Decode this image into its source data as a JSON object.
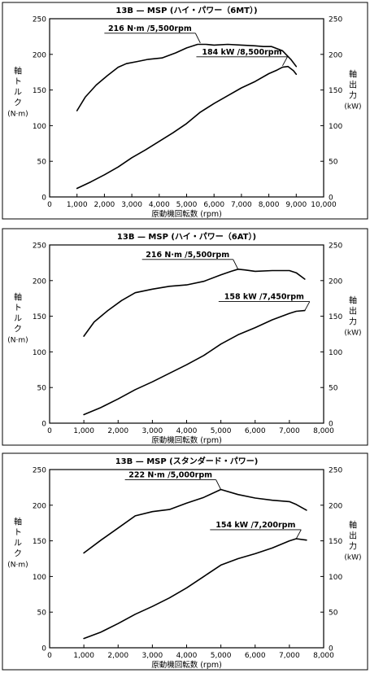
{
  "chart_data": [
    {
      "type": "line",
      "title": "13B — MSP (ハイ・パワー（6MT）)",
      "xlabel": "原動機回転数 (rpm)",
      "ylabel_left": [
        "軸",
        "ト",
        "ル",
        "ク",
        "(N·m)"
      ],
      "ylabel_right": [
        "軸",
        "出",
        "力",
        "(kW)"
      ],
      "xlim": [
        0,
        10000
      ],
      "ylim_left": [
        0,
        250
      ],
      "ylim_right": [
        0,
        250
      ],
      "x_ticks": [
        0,
        1000,
        2000,
        3000,
        4000,
        5000,
        6000,
        7000,
        8000,
        9000,
        10000
      ],
      "x_tick_labels": [
        "0",
        "1,000",
        "2,000",
        "3,000",
        "4,000",
        "5,000",
        "6,000",
        "7,000",
        "8,000",
        "9,000",
        "10,000"
      ],
      "y_ticks": [
        0,
        50,
        100,
        150,
        200,
        250
      ],
      "y_tick_labels": [
        "0",
        "50",
        "100",
        "150",
        "200",
        "250"
      ],
      "grid": false,
      "series": [
        {
          "axis": "left",
          "x": [
            1000,
            1300,
            1700,
            2100,
            2500,
            2800,
            3200,
            3600,
            4100,
            4600,
            5000,
            5400,
            5700,
            6000,
            6500,
            7000,
            7500,
            7800,
            8100,
            8500,
            8800,
            9000
          ],
          "values": [
            121,
            140,
            157,
            170,
            182,
            187,
            190,
            193,
            195,
            202,
            209,
            214,
            214,
            213,
            214,
            213,
            212,
            211,
            211,
            205,
            193,
            183
          ]
        },
        {
          "axis": "right",
          "x": [
            1000,
            1500,
            2000,
            2500,
            3000,
            3500,
            4000,
            4500,
            5000,
            5500,
            6000,
            6500,
            7000,
            7500,
            8000,
            8300,
            8500,
            8700,
            8900,
            9000
          ],
          "values": [
            12,
            21,
            31,
            42,
            55,
            66,
            78,
            90,
            103,
            119,
            131,
            142,
            153,
            162,
            173,
            178,
            182,
            183,
            177,
            172
          ]
        }
      ],
      "annotations": [
        {
          "text": "216 N·m /5,500rpm",
          "x": 5500,
          "y": 216,
          "axis": "left"
        },
        {
          "text": "184 kW /8,500rpm",
          "x": 8500,
          "y": 184,
          "axis": "right"
        }
      ]
    },
    {
      "type": "line",
      "title": "13B — MSP (ハイ・パワー（6AT）)",
      "xlabel": "原動機回転数 (rpm)",
      "ylabel_left": [
        "軸",
        "ト",
        "ル",
        "ク",
        "(N·m)"
      ],
      "ylabel_right": [
        "軸",
        "出",
        "力",
        "(kW)"
      ],
      "xlim": [
        0,
        8000
      ],
      "ylim_left": [
        0,
        250
      ],
      "ylim_right": [
        0,
        250
      ],
      "x_ticks": [
        0,
        1000,
        2000,
        3000,
        4000,
        5000,
        6000,
        7000,
        8000
      ],
      "x_tick_labels": [
        "0",
        "1,000",
        "2,000",
        "3,000",
        "4,000",
        "5,000",
        "6,000",
        "7,000",
        "8,000"
      ],
      "y_ticks": [
        0,
        50,
        100,
        150,
        200,
        250
      ],
      "y_tick_labels": [
        "0",
        "50",
        "100",
        "150",
        "200",
        "250"
      ],
      "grid": false,
      "series": [
        {
          "axis": "left",
          "x": [
            1000,
            1300,
            1700,
            2100,
            2500,
            3000,
            3500,
            4000,
            4500,
            5000,
            5300,
            5500,
            5700,
            6000,
            6500,
            7000,
            7200,
            7450
          ],
          "values": [
            122,
            142,
            158,
            172,
            183,
            188,
            192,
            194,
            199,
            208,
            213,
            216,
            215,
            213,
            214,
            214,
            211,
            202
          ]
        },
        {
          "axis": "right",
          "x": [
            1000,
            1500,
            2000,
            2500,
            3000,
            3500,
            4000,
            4500,
            5000,
            5500,
            6000,
            6500,
            7000,
            7200,
            7450
          ],
          "values": [
            12,
            22,
            34,
            47,
            58,
            70,
            82,
            95,
            111,
            124,
            134,
            145,
            154,
            157,
            158
          ]
        }
      ],
      "annotations": [
        {
          "text": "216 N·m /5,500rpm",
          "x": 5500,
          "y": 216,
          "axis": "left"
        },
        {
          "text": "158 kW /7,450rpm",
          "x": 7450,
          "y": 158,
          "axis": "right"
        }
      ]
    },
    {
      "type": "line",
      "title": "13B — MSP (スタンダード・パワー)",
      "xlabel": "原動機回転数 (rpm)",
      "ylabel_left": [
        "軸",
        "ト",
        "ル",
        "ク",
        "(N·m)"
      ],
      "ylabel_right": [
        "軸",
        "出",
        "力",
        "(kW)"
      ],
      "xlim": [
        0,
        8000
      ],
      "ylim_left": [
        0,
        250
      ],
      "ylim_right": [
        0,
        250
      ],
      "x_ticks": [
        0,
        1000,
        2000,
        3000,
        4000,
        5000,
        6000,
        7000,
        8000
      ],
      "x_tick_labels": [
        "0",
        "1,000",
        "2,000",
        "3,000",
        "4,000",
        "5,000",
        "6,000",
        "7,000",
        "8,000"
      ],
      "y_ticks": [
        0,
        50,
        100,
        150,
        200,
        250
      ],
      "y_tick_labels": [
        "0",
        "50",
        "100",
        "150",
        "200",
        "250"
      ],
      "grid": false,
      "series": [
        {
          "axis": "left",
          "x": [
            1000,
            1500,
            2000,
            2500,
            3000,
            3500,
            4000,
            4500,
            5000,
            5500,
            6000,
            6500,
            7000,
            7200,
            7500
          ],
          "values": [
            133,
            151,
            168,
            185,
            191,
            194,
            203,
            211,
            222,
            215,
            210,
            207,
            205,
            201,
            193
          ]
        },
        {
          "axis": "right",
          "x": [
            1000,
            1500,
            2000,
            2500,
            3000,
            3500,
            4000,
            4500,
            5000,
            5500,
            6000,
            6500,
            7000,
            7200,
            7500
          ],
          "values": [
            13,
            22,
            34,
            47,
            58,
            70,
            84,
            100,
            116,
            125,
            132,
            140,
            150,
            153,
            151
          ]
        }
      ],
      "annotations": [
        {
          "text": "222 N·m /5,000rpm",
          "x": 5000,
          "y": 222,
          "axis": "left"
        },
        {
          "text": "154 kW /7,200rpm",
          "x": 7200,
          "y": 153,
          "axis": "right"
        }
      ]
    }
  ]
}
